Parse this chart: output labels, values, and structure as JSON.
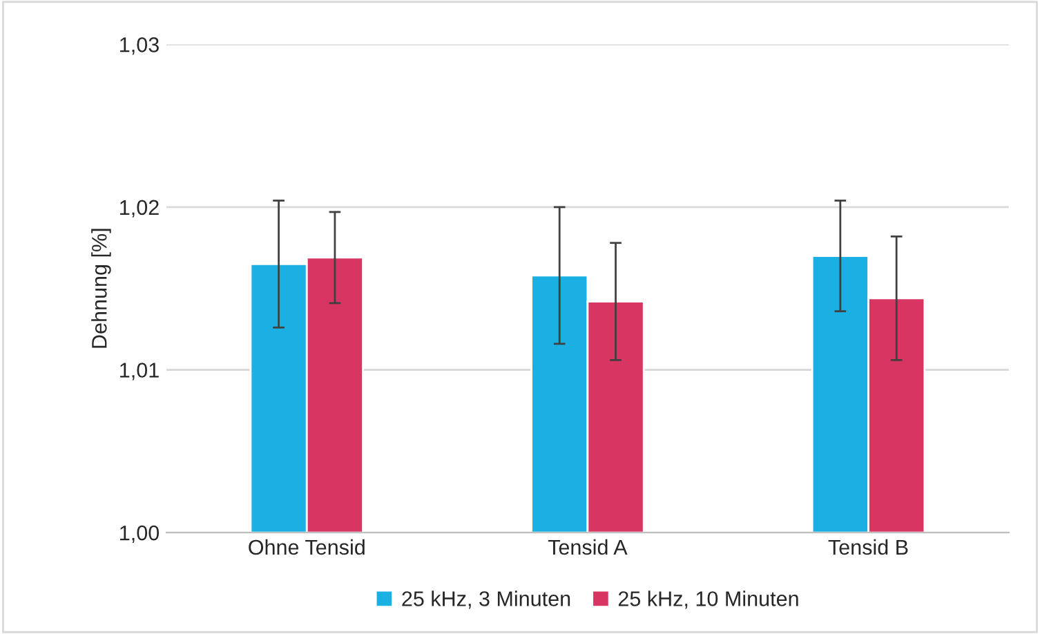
{
  "chart_data": {
    "type": "bar",
    "ylabel": "Dehnung [%]",
    "categories": [
      "Ohne Tensid",
      "Tensid A",
      "Tensid B"
    ],
    "series": [
      {
        "name": "25 kHz, 3 Minuten",
        "color": "#1ab0e4",
        "values": [
          1.0165,
          1.0158,
          1.017
        ],
        "errors": [
          0.0039,
          0.0042,
          0.0034
        ]
      },
      {
        "name": "25 kHz, 10 Minuten",
        "color": "#d93563",
        "values": [
          1.0169,
          1.0142,
          1.0144
        ],
        "errors": [
          0.0028,
          0.0036,
          0.0038
        ]
      }
    ],
    "ylim": [
      1.0,
      1.03
    ],
    "yticks": [
      {
        "value": 1.0,
        "label": "1,00"
      },
      {
        "value": 1.01,
        "label": "1,01"
      },
      {
        "value": 1.02,
        "label": "1,02"
      },
      {
        "value": 1.03,
        "label": "1,03"
      }
    ],
    "grid": "y",
    "legend": "bottom"
  }
}
